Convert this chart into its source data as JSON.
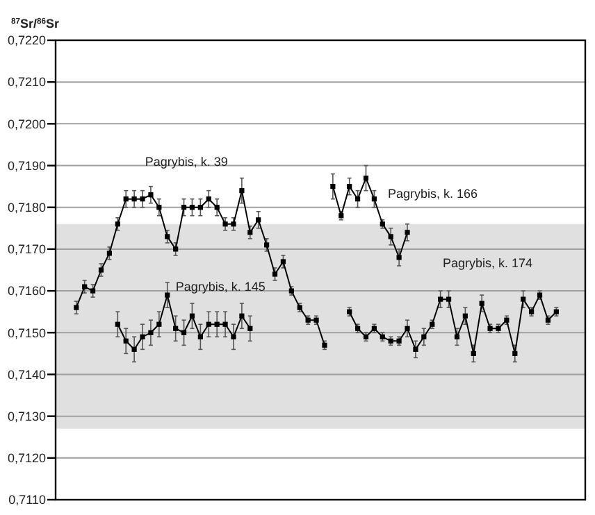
{
  "chart_data": {
    "type": "line",
    "ylabel": "$^{87}$Sr/$^{86}$Sr",
    "categories": [
      null,
      null,
      null,
      null,
      null,
      null,
      null,
      null,
      null,
      null,
      null,
      null,
      null,
      null,
      null,
      null,
      null,
      null,
      null,
      null,
      null,
      null,
      null,
      null,
      null,
      null,
      null,
      null,
      null,
      null,
      null,
      null,
      null,
      null,
      null,
      null,
      null,
      null,
      null,
      null,
      null,
      null,
      null,
      null,
      null,
      null,
      null,
      null,
      null,
      null,
      null,
      null,
      null,
      null,
      null,
      null,
      null,
      null,
      null,
      null,
      null,
      null,
      null,
      null
    ],
    "series": [
      {
        "name": "Pagrybis, k. 39",
        "color": "#000000",
        "values": [
          null,
          null,
          0.7156,
          0.7161,
          0.716,
          0.7165,
          0.7169,
          0.7176,
          0.7182,
          0.7182,
          0.7182,
          0.7183,
          0.718,
          0.7173,
          0.717,
          0.718,
          0.718,
          0.718,
          0.7182,
          0.718,
          0.7176,
          0.7176,
          0.7184,
          0.7174,
          0.7177,
          0.7171,
          0.7164,
          0.7167,
          0.716,
          0.7156,
          0.7153,
          0.7153,
          0.7147,
          null,
          null,
          null,
          null,
          null,
          null,
          null,
          null,
          null,
          null,
          null,
          null,
          null,
          null,
          null,
          null,
          null,
          null,
          null,
          null,
          null,
          null,
          null,
          null,
          null,
          null,
          null,
          null,
          null,
          null,
          null
        ],
        "errors": [
          null,
          null,
          0.00015,
          0.00015,
          0.00015,
          0.00015,
          0.00015,
          0.00015,
          0.0002,
          0.0002,
          0.0002,
          0.0002,
          0.0002,
          0.00015,
          0.00015,
          0.0002,
          0.0002,
          0.0002,
          0.0002,
          0.0002,
          0.00015,
          0.00015,
          0.0003,
          0.00015,
          0.0002,
          0.00015,
          0.00015,
          0.00015,
          0.0001,
          0.0001,
          0.0001,
          0.0001,
          0.0001,
          null,
          null,
          null,
          null,
          null,
          null,
          null,
          null,
          null,
          null,
          null,
          null,
          null,
          null,
          null,
          null,
          null,
          null,
          null,
          null,
          null,
          null,
          null,
          null,
          null,
          null,
          null,
          null,
          null,
          null,
          null
        ]
      },
      {
        "name": "Pagrybis, k. 145",
        "color": "#000000",
        "values": [
          null,
          null,
          null,
          null,
          null,
          null,
          null,
          0.7152,
          0.7148,
          0.7146,
          0.7149,
          0.715,
          0.7152,
          0.7159,
          0.7151,
          0.715,
          0.7154,
          0.7149,
          0.7152,
          0.7152,
          0.7152,
          0.7149,
          0.7154,
          0.7151,
          null,
          null,
          null,
          null,
          null,
          null,
          null,
          null,
          null,
          null,
          null,
          null,
          null,
          null,
          null,
          null,
          null,
          null,
          null,
          null,
          null,
          null,
          null,
          null,
          null,
          null,
          null,
          null,
          null,
          null,
          null,
          null,
          null,
          null,
          null,
          null,
          null,
          null,
          null,
          null
        ],
        "errors": [
          null,
          null,
          null,
          null,
          null,
          null,
          null,
          0.0003,
          0.0003,
          0.0003,
          0.0003,
          0.0003,
          0.0003,
          0.0003,
          0.0003,
          0.0003,
          0.0003,
          0.0003,
          0.0003,
          0.0003,
          0.0003,
          0.0003,
          0.0003,
          0.0003,
          null,
          null,
          null,
          null,
          null,
          null,
          null,
          null,
          null,
          null,
          null,
          null,
          null,
          null,
          null,
          null,
          null,
          null,
          null,
          null,
          null,
          null,
          null,
          null,
          null,
          null,
          null,
          null,
          null,
          null,
          null,
          null,
          null,
          null,
          null,
          null,
          null,
          null,
          null,
          null
        ]
      },
      {
        "name": "Pagrybis, k. 166",
        "color": "#000000",
        "values": [
          null,
          null,
          null,
          null,
          null,
          null,
          null,
          null,
          null,
          null,
          null,
          null,
          null,
          null,
          null,
          null,
          null,
          null,
          null,
          null,
          null,
          null,
          null,
          null,
          null,
          null,
          null,
          null,
          null,
          null,
          null,
          null,
          null,
          0.7185,
          0.7178,
          0.7185,
          0.7182,
          0.7187,
          0.7182,
          0.7176,
          0.7173,
          0.7168,
          0.7174,
          null,
          null,
          null,
          null,
          null,
          null,
          null,
          null,
          null,
          null,
          null,
          null,
          null,
          null,
          null,
          null,
          null,
          null,
          null,
          null,
          null
        ],
        "errors": [
          null,
          null,
          null,
          null,
          null,
          null,
          null,
          null,
          null,
          null,
          null,
          null,
          null,
          null,
          null,
          null,
          null,
          null,
          null,
          null,
          null,
          null,
          null,
          null,
          null,
          null,
          null,
          null,
          null,
          null,
          null,
          null,
          null,
          0.0003,
          0.0001,
          0.0002,
          0.0002,
          0.0003,
          0.0002,
          0.0001,
          0.0002,
          0.0002,
          0.0002,
          null,
          null,
          null,
          null,
          null,
          null,
          null,
          null,
          null,
          null,
          null,
          null,
          null,
          null,
          null,
          null,
          null,
          null,
          null,
          null,
          null
        ]
      },
      {
        "name": "Pagrybis, k. 174",
        "color": "#000000",
        "values": [
          null,
          null,
          null,
          null,
          null,
          null,
          null,
          null,
          null,
          null,
          null,
          null,
          null,
          null,
          null,
          null,
          null,
          null,
          null,
          null,
          null,
          null,
          null,
          null,
          null,
          null,
          null,
          null,
          null,
          null,
          null,
          null,
          null,
          null,
          null,
          0.7155,
          0.7151,
          0.7149,
          0.7151,
          0.7149,
          0.7148,
          0.7148,
          0.7151,
          0.7146,
          0.7149,
          0.7152,
          0.7158,
          0.7158,
          0.7149,
          0.7154,
          0.7145,
          0.7157,
          0.7151,
          0.7151,
          0.7153,
          0.7145,
          0.7158,
          0.7155,
          0.7159,
          0.7153,
          0.7155,
          null,
          null,
          null
        ],
        "errors": [
          null,
          null,
          null,
          null,
          null,
          null,
          null,
          null,
          null,
          null,
          null,
          null,
          null,
          null,
          null,
          null,
          null,
          null,
          null,
          null,
          null,
          null,
          null,
          null,
          null,
          null,
          null,
          null,
          null,
          null,
          null,
          null,
          null,
          null,
          null,
          0.0001,
          0.0001,
          0.0001,
          0.0001,
          0.0001,
          0.0001,
          0.0001,
          0.0002,
          0.0002,
          0.0002,
          0.0001,
          0.0002,
          0.0002,
          0.0002,
          0.0002,
          0.0002,
          0.0002,
          0.0001,
          0.0001,
          0.0001,
          0.0002,
          0.0002,
          0.0001,
          0.0001,
          0.0001,
          0.0001,
          null,
          null,
          null
        ]
      }
    ],
    "ylim": [
      0.711,
      0.722
    ],
    "yticks": [
      {
        "value": 0.711,
        "label": "0,7110"
      },
      {
        "value": 0.712,
        "label": "0,7120"
      },
      {
        "value": 0.713,
        "label": "0,7130"
      },
      {
        "value": 0.714,
        "label": "0,7140"
      },
      {
        "value": 0.715,
        "label": "0,7150"
      },
      {
        "value": 0.716,
        "label": "0,7160"
      },
      {
        "value": 0.717,
        "label": "0,7170"
      },
      {
        "value": 0.718,
        "label": "0,7180"
      },
      {
        "value": 0.719,
        "label": "0,7190"
      },
      {
        "value": 0.72,
        "label": "0,7200"
      },
      {
        "value": 0.721,
        "label": "0,7210"
      },
      {
        "value": 0.722,
        "label": "0,7220"
      }
    ],
    "bands": [
      {
        "axis": "y",
        "from": 0.7127,
        "to": 0.7176,
        "color": "#e0e0e0"
      }
    ],
    "grid": "y",
    "legend": false,
    "marker": "square",
    "line_style": "solid"
  }
}
